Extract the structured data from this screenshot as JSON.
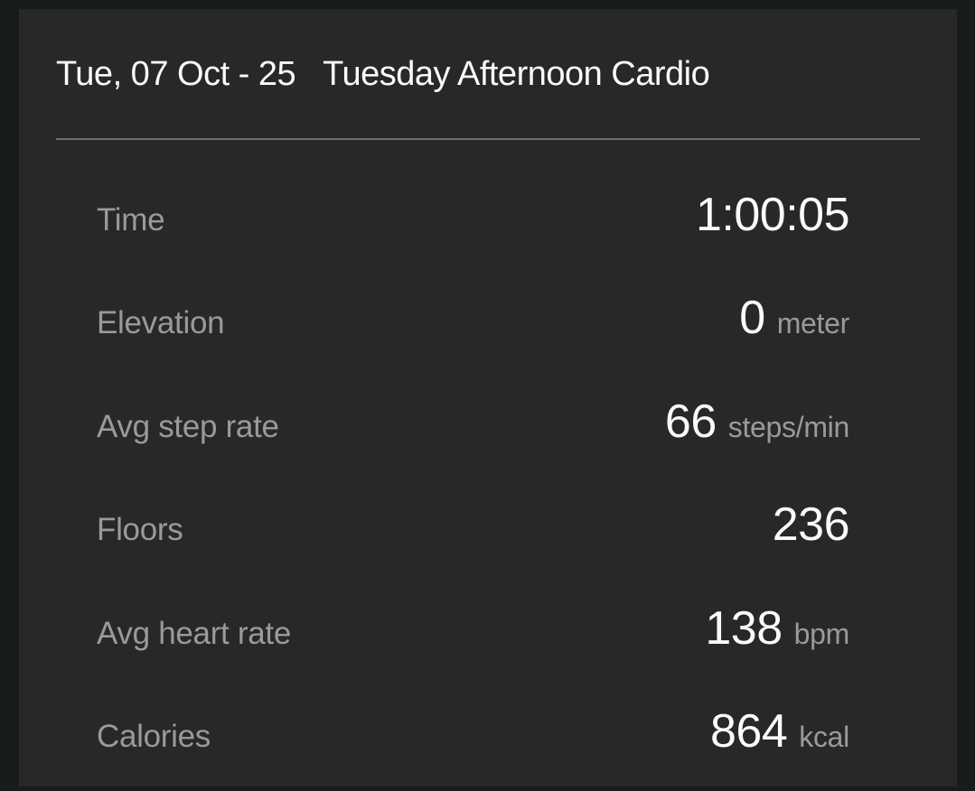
{
  "card": {
    "header": {
      "date": "Tue, 07 Oct - 25",
      "title": "Tuesday Afternoon Cardio"
    },
    "rows": [
      {
        "label": "Time",
        "value": "1:00:05",
        "unit": ""
      },
      {
        "label": "Elevation",
        "value": "0",
        "unit": "meter"
      },
      {
        "label": "Avg step rate",
        "value": "66",
        "unit": "steps/min"
      },
      {
        "label": "Floors",
        "value": "236",
        "unit": ""
      },
      {
        "label": "Avg heart rate",
        "value": "138",
        "unit": "bpm"
      },
      {
        "label": "Calories",
        "value": "864",
        "unit": "kcal"
      }
    ]
  },
  "colors": {
    "outer-bg": "#181c18",
    "card-bg": "#282828",
    "divider": "#6e6e6e",
    "primary-text": "#fafafa",
    "secondary-text": "#9a9a9a"
  }
}
